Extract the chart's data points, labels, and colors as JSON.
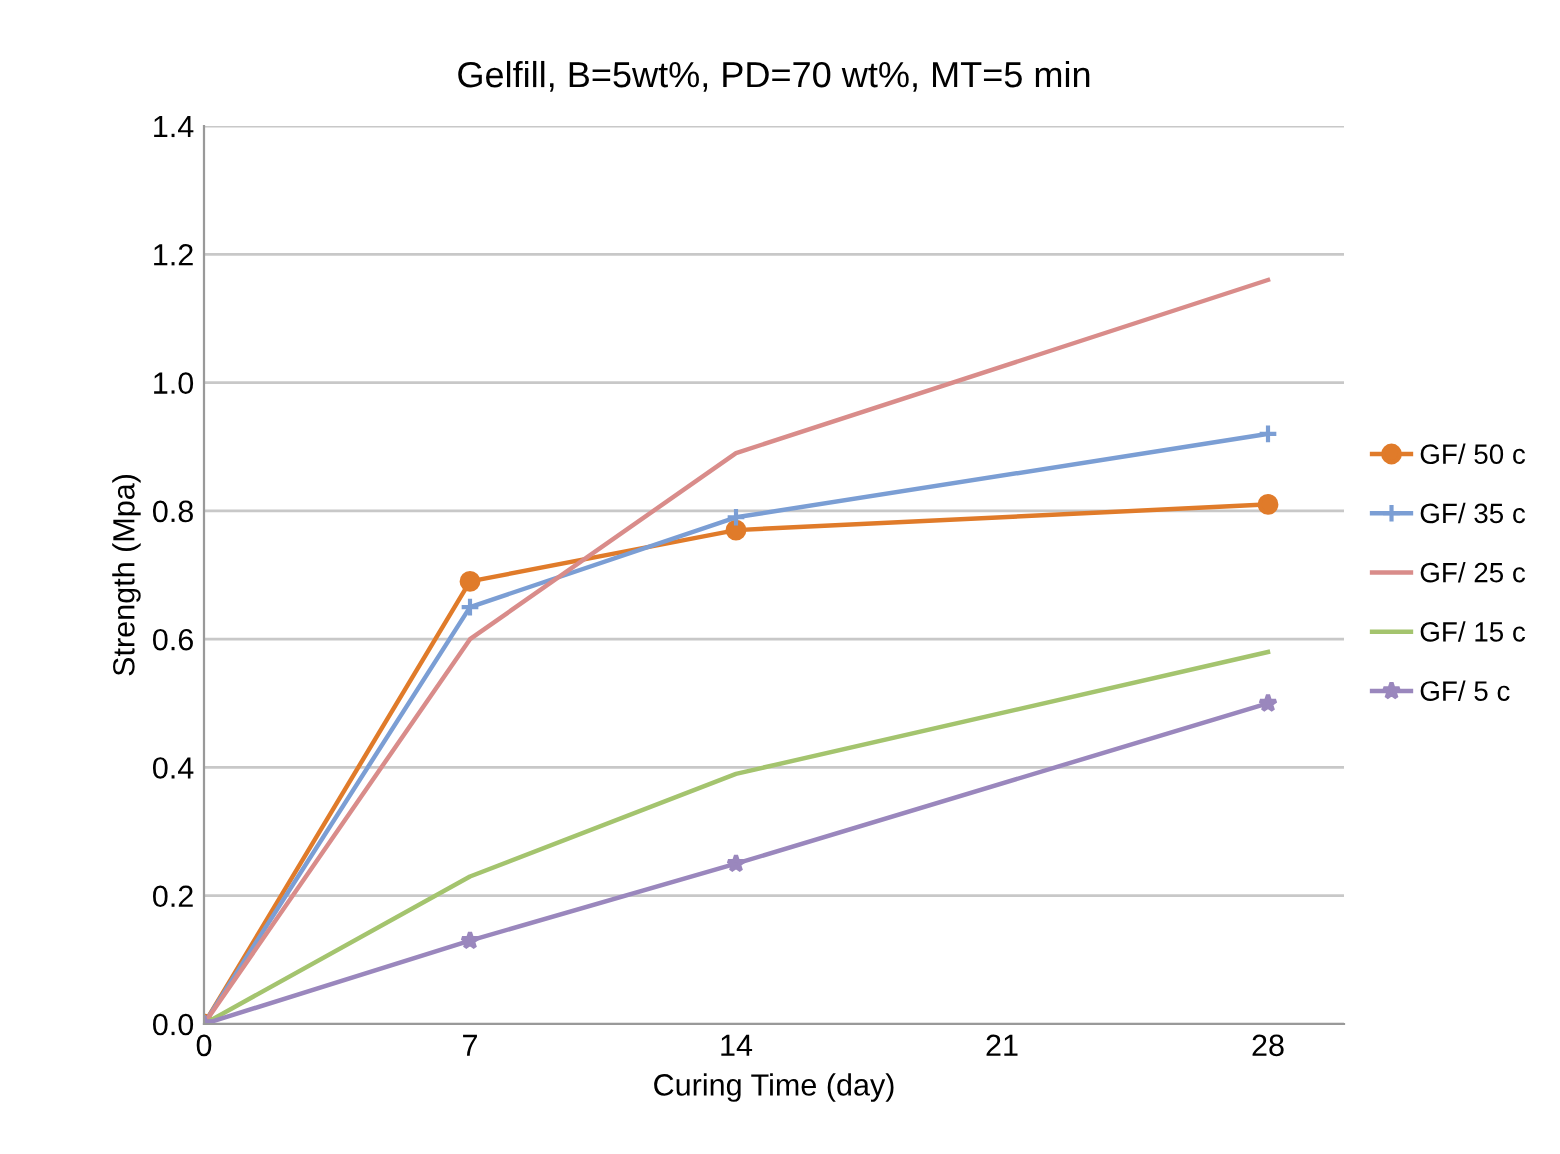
{
  "chart_data": {
    "type": "line",
    "title": "Gelfill, B=5wt%, PD=70 wt%, MT=5 min",
    "xlabel": "Curing Time (day)",
    "ylabel": "Strength (Mpa)",
    "x": [
      0,
      7,
      14,
      28
    ],
    "series": [
      {
        "name": "GF/ 50 c",
        "color": "#e07b2a",
        "marker": "circle",
        "values": [
          0.0,
          0.69,
          0.77,
          0.81
        ]
      },
      {
        "name": "GF/ 35 c",
        "color": "#7b9ed4",
        "marker": "cross",
        "values": [
          0.0,
          0.65,
          0.79,
          0.92
        ]
      },
      {
        "name": "GF/ 25 c",
        "color": "#d98c8a",
        "marker": "none",
        "values": [
          0.0,
          0.6,
          0.89,
          1.16
        ]
      },
      {
        "name": "GF/ 15 c",
        "color": "#a4c46e",
        "marker": "none",
        "values": [
          0.0,
          0.23,
          0.39,
          0.58
        ]
      },
      {
        "name": "GF/ 5 c",
        "color": "#9a87bd",
        "marker": "star",
        "values": [
          0.0,
          0.13,
          0.25,
          0.5
        ]
      }
    ],
    "xlim": [
      0,
      30
    ],
    "xticks": [
      0,
      7,
      14,
      21,
      28
    ],
    "ylim": [
      0,
      1.4
    ],
    "yticks": [
      {
        "value": 0,
        "label": "0.0"
      },
      {
        "value": 0.2,
        "label": "0.2"
      },
      {
        "value": 0.4,
        "label": "0.4"
      },
      {
        "value": 0.6,
        "label": "0.6"
      },
      {
        "value": 0.8,
        "label": "0.8"
      },
      {
        "value": 1.0,
        "label": "1.0"
      },
      {
        "value": 1.2,
        "label": "1.2"
      },
      {
        "value": 1.4,
        "label": "1.4"
      }
    ],
    "grid": "y",
    "legend": "right"
  }
}
